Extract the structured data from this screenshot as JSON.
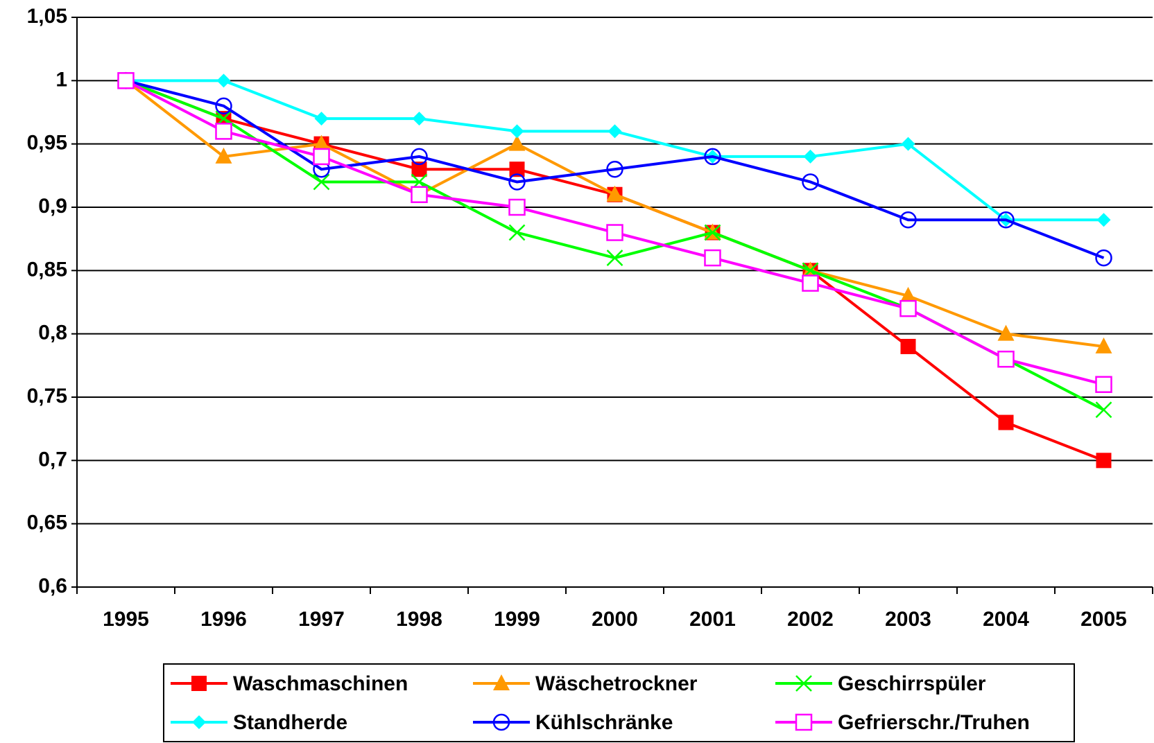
{
  "chart_data": {
    "type": "line",
    "categories": [
      "1995",
      "1996",
      "1997",
      "1998",
      "1999",
      "2000",
      "2001",
      "2002",
      "2003",
      "2004",
      "2005"
    ],
    "series": [
      {
        "name": "Waschmaschinen",
        "color": "#ff0000",
        "marker": "square",
        "values": [
          1,
          0.97,
          0.95,
          0.93,
          0.93,
          0.91,
          0.88,
          0.85,
          0.79,
          0.73,
          0.7
        ]
      },
      {
        "name": "Wäschetrockner",
        "color": "#ff9900",
        "marker": "triangle",
        "values": [
          1,
          0.94,
          0.95,
          0.91,
          0.95,
          0.91,
          0.88,
          0.85,
          0.83,
          0.8,
          0.79
        ]
      },
      {
        "name": "Geschirrspüler",
        "color": "#00ff00",
        "marker": "x",
        "values": [
          1,
          0.97,
          0.92,
          0.92,
          0.88,
          0.86,
          0.88,
          0.85,
          0.82,
          0.78,
          0.74
        ]
      },
      {
        "name": "Standherde",
        "color": "#00ffff",
        "marker": "diamond",
        "values": [
          1,
          1,
          0.97,
          0.97,
          0.96,
          0.96,
          0.94,
          0.94,
          0.95,
          0.89,
          0.89
        ]
      },
      {
        "name": "Kühlschränke",
        "color": "#0000ff",
        "marker": "circle-open",
        "values": [
          1,
          0.98,
          0.93,
          0.94,
          0.92,
          0.93,
          0.94,
          0.92,
          0.89,
          0.89,
          0.86
        ]
      },
      {
        "name": "Gefrierschr./Truhen",
        "color": "#ff00ff",
        "marker": "square-open",
        "values": [
          1,
          0.96,
          0.94,
          0.91,
          0.9,
          0.88,
          0.86,
          0.84,
          0.82,
          0.78,
          0.76
        ]
      }
    ],
    "ylim": [
      0.6,
      1.05
    ],
    "yticks": [
      {
        "value": 0.6,
        "label": "0,6"
      },
      {
        "value": 0.65,
        "label": "0,65"
      },
      {
        "value": 0.7,
        "label": "0,7"
      },
      {
        "value": 0.75,
        "label": "0,75"
      },
      {
        "value": 0.8,
        "label": "0,8"
      },
      {
        "value": 0.85,
        "label": "0,85"
      },
      {
        "value": 0.9,
        "label": "0,9"
      },
      {
        "value": 0.95,
        "label": "0,95"
      },
      1,
      {
        "value": 1.05,
        "label": "1,05"
      }
    ],
    "grid": true,
    "legend": "bottom"
  }
}
